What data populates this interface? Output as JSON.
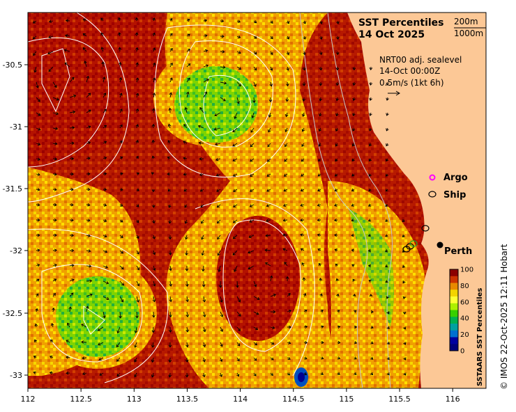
{
  "title": {
    "line1": "SST Percentiles",
    "line2": "14 Oct 2025"
  },
  "depth_contours": {
    "shallow": "200m",
    "deep": "1000m"
  },
  "currents": {
    "source": "NRT00 adj. sealevel",
    "time": "14-Oct 00:00Z",
    "scale": "0.5m/s (1kt 6h)"
  },
  "legend": {
    "argo": "Argo",
    "ship": "Ship",
    "argo_color": "#ff00ff",
    "ship_color": "#000000"
  },
  "place": {
    "city": "Perth"
  },
  "colorbar": {
    "title": "SSTAARS SST Percentiles",
    "ticks": [
      "100",
      "80",
      "60",
      "40",
      "20",
      "0"
    ],
    "colors": [
      "#8b0000",
      "#cc3300",
      "#e88a00",
      "#f3d400",
      "#ffff33",
      "#aef000",
      "#37d000",
      "#00b050",
      "#00a0a0",
      "#0070d0",
      "#0000a0",
      "#00007a"
    ]
  },
  "credit": "© IMOS 22-Oct-2025 12:11 Hobart",
  "axes": {
    "x_ticks": [
      "112",
      "112.5",
      "113",
      "113.5",
      "114",
      "114.5",
      "115",
      "115.5",
      "116"
    ],
    "y_ticks": [
      "-30.5",
      "-31",
      "-31.5",
      "-32",
      "-32.5",
      "-33"
    ]
  },
  "colors": {
    "land": "#fcc896",
    "sea_hot": "#a80000",
    "sea_warm": "#e06a00",
    "sea_mid": "#f6d800",
    "sea_cool": "#40c020",
    "contour": "#ffffff"
  }
}
